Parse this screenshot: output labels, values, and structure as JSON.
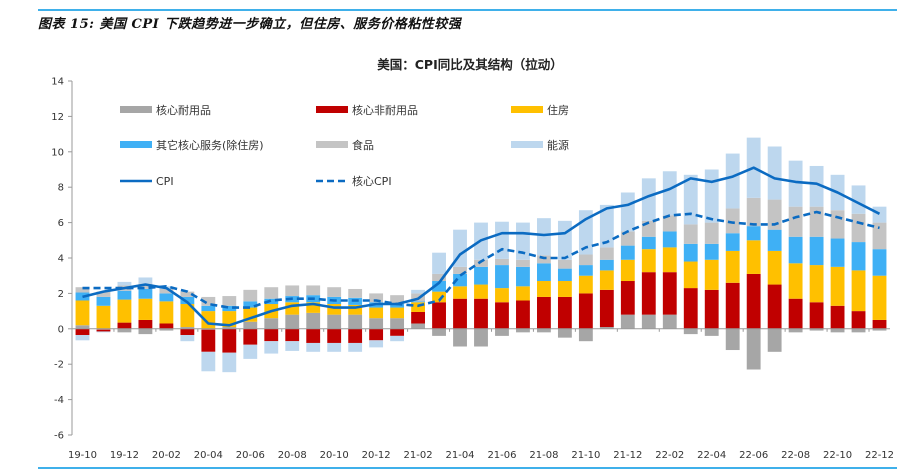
{
  "figure": {
    "caption": "图表 15: 美国 CPI 下跌趋势进一步确立，但住房、服务价格粘性较强"
  },
  "colors": {
    "core_durables": "#a6a6a6",
    "core_nondurables": "#c00000",
    "housing": "#ffc000",
    "other_core_services": "#3fb0f5",
    "food": "#c4c4c4",
    "energy": "#bdd7ee",
    "cpi": "#0b6bc2",
    "core_cpi": "#0b6bc2",
    "rule": "#3fb0ea"
  },
  "chart_data": {
    "type": "bar",
    "stacked": true,
    "title": "美国：CPI同比及其结构（拉动）",
    "xlabel": "",
    "ylabel": "",
    "ylim": [
      -6,
      14
    ],
    "yticks": [
      14,
      12,
      10,
      8,
      6,
      4,
      2,
      0,
      -2,
      -4,
      -6
    ],
    "grid": false,
    "legend_position": "top-left, 3 columns",
    "x_tick_labels": [
      "19-10",
      "19-12",
      "20-02",
      "20-04",
      "20-06",
      "20-08",
      "20-10",
      "20-12",
      "21-02",
      "21-04",
      "21-06",
      "21-08",
      "21-10",
      "21-12",
      "22-02",
      "22-04",
      "22-06",
      "22-08",
      "22-10",
      "22-12"
    ],
    "categories": [
      "19-10",
      "19-11",
      "19-12",
      "20-01",
      "20-02",
      "20-03",
      "20-04",
      "20-05",
      "20-06",
      "20-07",
      "20-08",
      "20-09",
      "20-10",
      "20-11",
      "20-12",
      "21-01",
      "21-02",
      "21-03",
      "21-04",
      "21-05",
      "21-06",
      "21-07",
      "21-08",
      "21-09",
      "21-10",
      "21-11",
      "21-12",
      "22-01",
      "22-02",
      "22-03",
      "22-04",
      "22-05",
      "22-06",
      "22-07",
      "22-08",
      "22-09",
      "22-10",
      "22-11",
      "22-12"
    ],
    "series": [
      {
        "key": "core_durables",
        "name": "核心耐用品",
        "kind": "bar",
        "values": [
          0.2,
          -0.05,
          -0.2,
          -0.3,
          -0.1,
          0.1,
          -0.05,
          0.1,
          0.4,
          0.6,
          0.8,
          0.9,
          0.8,
          0.8,
          0.6,
          0.6,
          0.3,
          -0.4,
          -1.0,
          -1.0,
          -0.4,
          -0.2,
          -0.2,
          -0.5,
          -0.7,
          0.1,
          0.8,
          0.8,
          0.8,
          -0.3,
          -0.4,
          -1.2,
          -2.3,
          -1.3,
          -0.2,
          -0.1,
          -0.2,
          -0.2,
          -0.1
        ]
      },
      {
        "key": "core_nondurables",
        "name": "核心非耐用品",
        "kind": "bar",
        "values": [
          -0.35,
          -0.1,
          0.35,
          0.5,
          0.3,
          -0.35,
          -1.25,
          -1.35,
          -0.9,
          -0.7,
          -0.7,
          -0.8,
          -0.8,
          -0.8,
          -0.65,
          -0.4,
          0.65,
          1.5,
          1.7,
          1.7,
          1.5,
          1.6,
          1.8,
          1.8,
          2.0,
          2.1,
          1.9,
          2.4,
          2.4,
          2.3,
          2.2,
          2.6,
          3.1,
          2.5,
          1.7,
          1.5,
          1.3,
          1.0,
          0.5
        ]
      },
      {
        "key": "housing",
        "name": "住房",
        "kind": "bar",
        "values": [
          1.4,
          1.3,
          1.3,
          1.2,
          1.25,
          1.3,
          1.0,
          0.9,
          0.8,
          0.8,
          0.7,
          0.6,
          0.6,
          0.55,
          0.6,
          0.6,
          0.55,
          0.6,
          0.7,
          0.8,
          0.8,
          0.8,
          0.9,
          0.9,
          1.0,
          1.1,
          1.2,
          1.3,
          1.4,
          1.5,
          1.7,
          1.8,
          1.9,
          1.9,
          2.0,
          2.1,
          2.2,
          2.3,
          2.5
        ]
      },
      {
        "key": "other_core_services",
        "name": "其它核心服务(除住房)",
        "kind": "bar",
        "values": [
          0.45,
          0.5,
          0.5,
          0.55,
          0.45,
          0.4,
          0.3,
          0.3,
          0.35,
          0.3,
          0.35,
          0.4,
          0.4,
          0.4,
          0.3,
          0.2,
          0.05,
          0.6,
          0.7,
          1.0,
          1.3,
          1.1,
          1.0,
          0.7,
          0.6,
          0.6,
          0.8,
          0.7,
          0.9,
          1.0,
          0.9,
          1.0,
          0.8,
          1.2,
          1.5,
          1.6,
          1.6,
          1.6,
          1.5
        ]
      },
      {
        "key": "food",
        "name": "食品",
        "kind": "bar",
        "values": [
          0.3,
          0.3,
          0.3,
          0.3,
          0.25,
          0.3,
          0.5,
          0.55,
          0.65,
          0.65,
          0.6,
          0.55,
          0.55,
          0.5,
          0.5,
          0.5,
          0.45,
          0.4,
          0.4,
          0.4,
          0.35,
          0.4,
          0.45,
          0.5,
          0.6,
          0.7,
          0.8,
          0.9,
          0.9,
          1.1,
          1.2,
          1.4,
          1.6,
          1.7,
          1.7,
          1.7,
          1.6,
          1.6,
          1.5
        ]
      },
      {
        "key": "energy",
        "name": "能源",
        "kind": "bar",
        "values": [
          -0.3,
          -0.05,
          0.2,
          0.35,
          0.15,
          -0.35,
          -1.1,
          -1.1,
          -0.8,
          -0.7,
          -0.55,
          -0.5,
          -0.5,
          -0.5,
          -0.4,
          -0.3,
          0.2,
          1.2,
          2.1,
          2.1,
          2.1,
          2.1,
          2.1,
          2.2,
          2.5,
          2.4,
          2.2,
          2.4,
          2.5,
          2.8,
          3.0,
          3.1,
          3.4,
          3.0,
          2.6,
          2.3,
          2.0,
          1.6,
          0.9
        ]
      },
      {
        "key": "cpi",
        "name": "CPI",
        "kind": "line",
        "style": "solid",
        "values": [
          1.8,
          2.1,
          2.3,
          2.5,
          2.3,
          1.5,
          0.3,
          0.2,
          0.6,
          1.0,
          1.3,
          1.4,
          1.2,
          1.2,
          1.4,
          1.4,
          1.7,
          2.6,
          4.2,
          5.0,
          5.4,
          5.4,
          5.3,
          5.4,
          6.2,
          6.8,
          7.0,
          7.5,
          7.9,
          8.5,
          8.3,
          8.6,
          9.1,
          8.5,
          8.3,
          8.2,
          7.7,
          7.1,
          6.5
        ]
      },
      {
        "key": "core_cpi",
        "name": "核心CPI",
        "kind": "line",
        "style": "dashed",
        "values": [
          2.3,
          2.3,
          2.3,
          2.3,
          2.4,
          2.1,
          1.4,
          1.2,
          1.2,
          1.6,
          1.7,
          1.7,
          1.6,
          1.6,
          1.6,
          1.4,
          1.3,
          1.6,
          3.0,
          3.8,
          4.5,
          4.3,
          4.0,
          4.0,
          4.6,
          4.9,
          5.5,
          6.0,
          6.4,
          6.5,
          6.2,
          6.0,
          5.9,
          5.9,
          6.3,
          6.6,
          6.3,
          6.0,
          5.7
        ]
      }
    ]
  }
}
